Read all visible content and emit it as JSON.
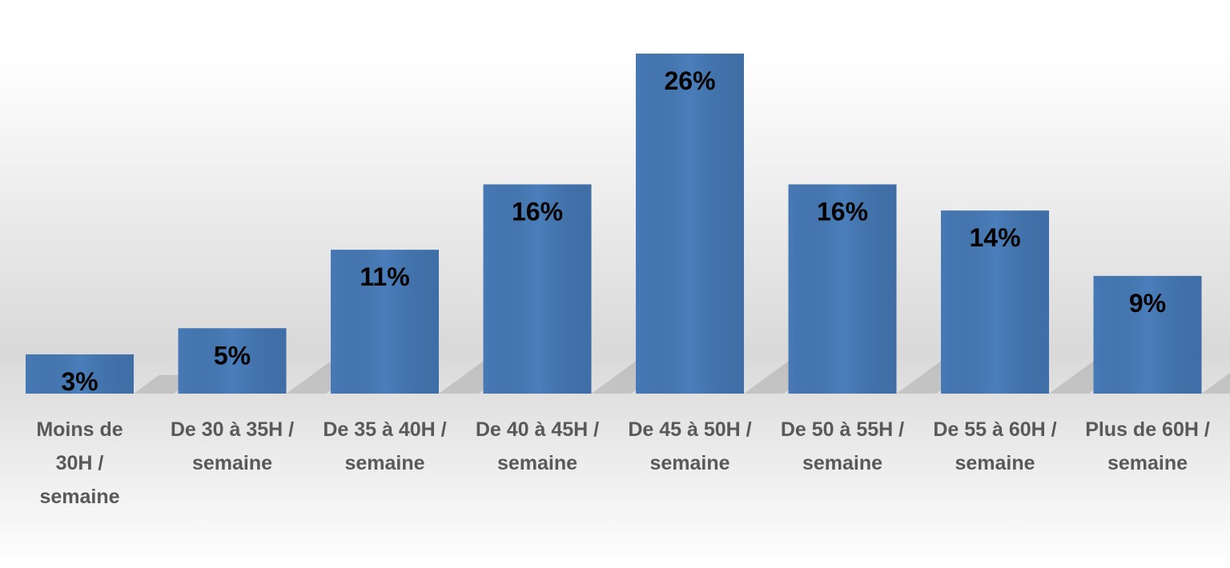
{
  "chart_data": {
    "type": "bar",
    "categories": [
      "Moins de 30H / semaine",
      "De 30 à 35H / semaine",
      "De 35 à 40H / semaine",
      "De 40 à 45H / semaine",
      "De 45 à 50H / semaine",
      "De 50 à 55H / semaine",
      "De 55 à 60H / semaine",
      "Plus de 60H / semaine"
    ],
    "values": [
      3,
      5,
      11,
      16,
      26,
      16,
      14,
      9
    ],
    "value_labels": [
      "3%",
      "5%",
      "11%",
      "16%",
      "26%",
      "16%",
      "14%",
      "9%"
    ],
    "color": "#4a7ebb"
  }
}
